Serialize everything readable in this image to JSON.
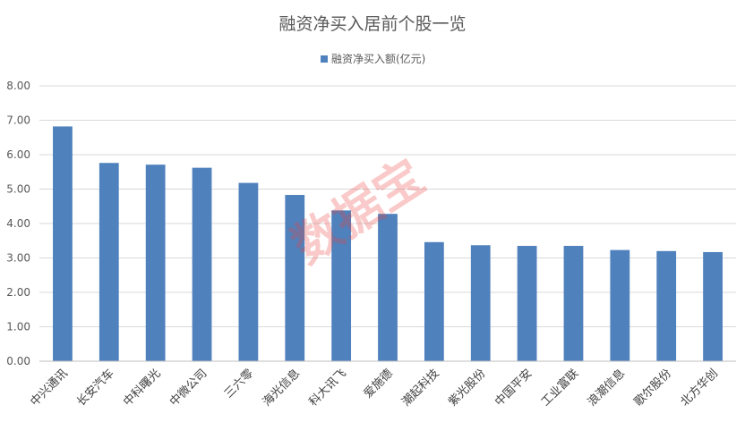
{
  "chart_data": {
    "type": "bar",
    "title": "融资净买入居前个股一览",
    "categories": [
      "中兴通讯",
      "长安汽车",
      "中科曙光",
      "中微公司",
      "三六零",
      "海光信息",
      "科大讯飞",
      "爱施德",
      "潮起科技",
      "紫光股份",
      "中国平安",
      "工业富联",
      "浪潮信息",
      "歌尔股份",
      "北方华创"
    ],
    "series": [
      {
        "name": "融资净买入额(亿元)",
        "color": "#4f81bd",
        "values": [
          6.82,
          5.76,
          5.71,
          5.62,
          5.18,
          4.83,
          4.38,
          4.28,
          3.46,
          3.37,
          3.35,
          3.35,
          3.23,
          3.2,
          3.17
        ]
      }
    ],
    "ylim": [
      0,
      8
    ],
    "yticks": [
      "0.00",
      "1.00",
      "2.00",
      "3.00",
      "4.00",
      "5.00",
      "6.00",
      "7.00",
      "8.00"
    ],
    "grid": true,
    "legend_position": "top",
    "xlabel": "",
    "ylabel": ""
  },
  "watermark": {
    "text": "数据宝",
    "color": "#e8413c"
  }
}
